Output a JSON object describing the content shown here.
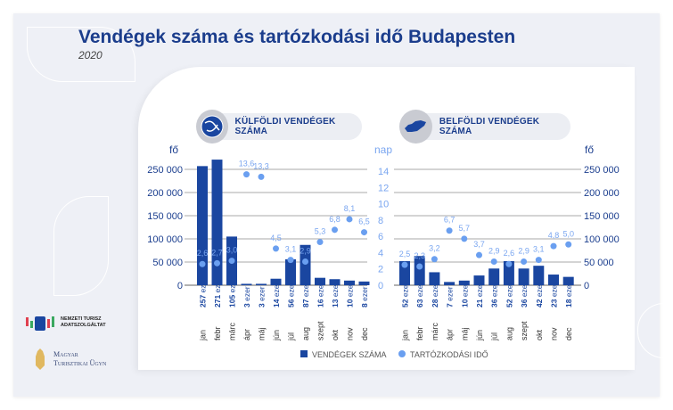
{
  "title": "Vendégek száma és tartózkodási idő Budapesten",
  "subtitle": "2020",
  "colors": {
    "bar": "#1a46a0",
    "dot": "#6a9ff0",
    "nap_text": "#7aa6f0",
    "axis_text": "#1c3f8f"
  },
  "logos": {
    "ntak": "NEMZETI TURISZ ADATSZOLGÁLTAT",
    "mtu_line1": "Magyar",
    "mtu_line2": "Turisztikai Ügyn"
  },
  "legend": {
    "bars": "VENDÉGEK SZÁMA",
    "dots": "TARTÓZKODÁSI IDŐ"
  },
  "chart_data": [
    {
      "type": "bar",
      "title": "KÜLFÖLDI VENDÉGEK SZÁMA",
      "icon": "globe-icon",
      "ylabel": "fő",
      "y2label": "nap",
      "ylim": [
        0,
        250000
      ],
      "y2lim": [
        0,
        14
      ],
      "yticks": [
        "0",
        "50 000",
        "100 000",
        "150 000",
        "200 000",
        "250 000"
      ],
      "y2ticks": [
        "0",
        "2",
        "4",
        "6",
        "8",
        "10",
        "12",
        "14"
      ],
      "categories": [
        "jan",
        "febr",
        "márc",
        "ápr",
        "máj",
        "jún",
        "júl",
        "aug",
        "szept",
        "okt",
        "nov",
        "dec"
      ],
      "series": [
        {
          "name": "VENDÉGEK SZÁMA",
          "type": "bar",
          "values": [
            257000,
            271000,
            105000,
            3000,
            3000,
            14000,
            56000,
            87000,
            16000,
            13000,
            10000,
            8000
          ],
          "labels": [
            "257",
            "271",
            "105",
            "3",
            "3",
            "14",
            "56",
            "87",
            "16",
            "13",
            "10",
            "8"
          ]
        },
        {
          "name": "TARTÓZKODÁSI IDŐ",
          "type": "scatter",
          "axis": "y2",
          "values": [
            2.6,
            2.7,
            3.0,
            13.6,
            13.3,
            4.5,
            3.1,
            2.9,
            5.3,
            6.8,
            8.1,
            6.5
          ],
          "labels": [
            "2,6",
            "2,7",
            "3,0",
            "13,6",
            "13,3",
            "4,5",
            "3,1",
            "2,9",
            "5,3",
            "6,8",
            "8,1",
            "6,5"
          ]
        }
      ],
      "unit_suffix": "ezer"
    },
    {
      "type": "bar",
      "title": "BELFÖLDI VENDÉGEK SZÁMA",
      "icon": "hungary-map-icon",
      "ylabel": "fő",
      "ylim": [
        0,
        250000
      ],
      "y2lim": [
        0,
        14
      ],
      "yticks": [
        "0",
        "50 000",
        "100 000",
        "150 000",
        "200 000",
        "250 000"
      ],
      "categories": [
        "jan",
        "febr",
        "márc",
        "ápr",
        "máj",
        "jún",
        "júl",
        "aug",
        "szept",
        "okt",
        "nov",
        "dec"
      ],
      "series": [
        {
          "name": "VENDÉGEK SZÁMA",
          "type": "bar",
          "values": [
            52000,
            63000,
            28000,
            7000,
            10000,
            21000,
            36000,
            52000,
            36000,
            42000,
            23000,
            18000
          ],
          "labels": [
            "52",
            "63",
            "28",
            "7",
            "10",
            "21",
            "36",
            "52",
            "36",
            "42",
            "23",
            "18"
          ]
        },
        {
          "name": "TARTÓZKODÁSI IDŐ",
          "type": "scatter",
          "axis": "y2",
          "values": [
            2.5,
            2.3,
            3.2,
            6.7,
            5.7,
            3.7,
            2.9,
            2.6,
            2.9,
            3.1,
            4.8,
            5.0
          ],
          "labels": [
            "2,5",
            "2,3",
            "3,2",
            "6,7",
            "5,7",
            "3,7",
            "2,9",
            "2,6",
            "2,9",
            "3,1",
            "4,8",
            "5,0"
          ]
        }
      ],
      "unit_suffix": "ezer"
    }
  ]
}
